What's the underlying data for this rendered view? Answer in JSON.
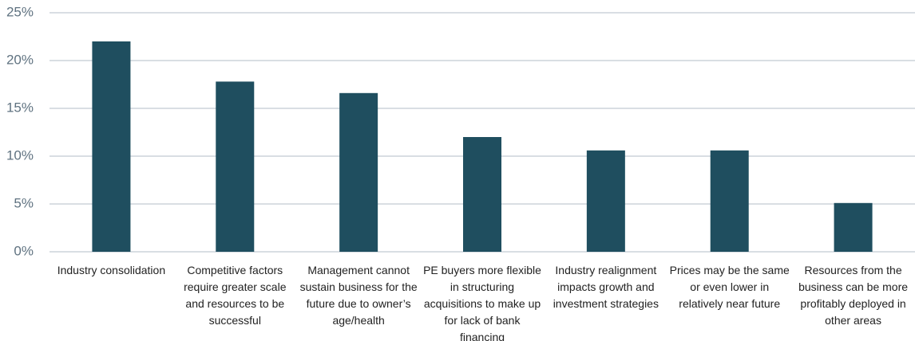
{
  "chart_data": {
    "type": "bar",
    "categories": [
      "Industry consolidation",
      "Competitive factors require greater scale and resources to be successful",
      "Management cannot sustain business for the future due to owner’s age/health",
      "PE buyers more flexible in structuring acquisitions to make up for lack of bank financing",
      "Industry realignment impacts growth and investment strategies",
      "Prices may be the same or even lower in relatively near future",
      "Resources from the business can be more profitably deployed in other areas"
    ],
    "values": [
      22,
      17.8,
      16.6,
      12,
      10.6,
      10.6,
      5.1
    ],
    "color": "#1f4e5f",
    "ylim": [
      0,
      25
    ],
    "yticks": [
      {
        "value": 0,
        "label": "0%"
      },
      {
        "value": 5,
        "label": "5%"
      },
      {
        "value": 10,
        "label": "10%"
      },
      {
        "value": 15,
        "label": "15%"
      },
      {
        "value": 20,
        "label": "20%"
      },
      {
        "value": 25,
        "label": "25%"
      }
    ],
    "grid": true
  }
}
